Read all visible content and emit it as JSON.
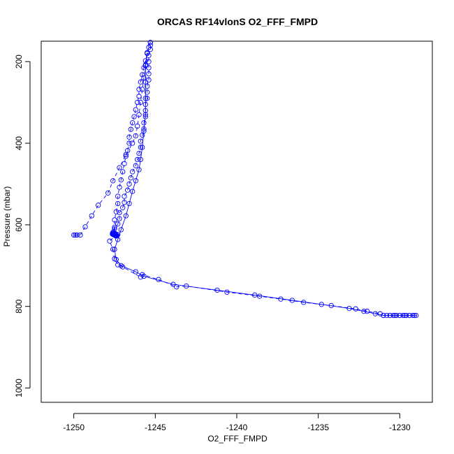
{
  "chart_data": {
    "type": "scatter",
    "title": "ORCAS RF14vlonS O2_FFF_FMPD",
    "xlabel": "O2_FFF_FMPD",
    "ylabel": "Pressure (mbar)",
    "xlim": [
      -1252,
      -1228
    ],
    "ylim": [
      1035,
      150
    ],
    "y_reversed": true,
    "x_ticks": [
      -1250,
      -1245,
      -1240,
      -1235,
      -1230
    ],
    "y_ticks": [
      200,
      400,
      600,
      800,
      1000
    ],
    "grid": false,
    "legend": "none",
    "series": [
      {
        "line_style": "dashed",
        "marker": "open-circle",
        "color": "#0000ff",
        "points": [
          {
            "x": -1229.0,
            "y": 822
          },
          {
            "x": -1229.2,
            "y": 822
          },
          {
            "x": -1229.4,
            "y": 822
          },
          {
            "x": -1229.6,
            "y": 822
          },
          {
            "x": -1229.8,
            "y": 822
          },
          {
            "x": -1230.0,
            "y": 822
          },
          {
            "x": -1230.2,
            "y": 822
          },
          {
            "x": -1230.4,
            "y": 822
          },
          {
            "x": -1230.6,
            "y": 822
          },
          {
            "x": -1230.8,
            "y": 822
          },
          {
            "x": -1231.0,
            "y": 822
          },
          {
            "x": -1231.2,
            "y": 818
          },
          {
            "x": -1232.0,
            "y": 812
          },
          {
            "x": -1232.7,
            "y": 806
          },
          {
            "x": -1234.2,
            "y": 798
          },
          {
            "x": -1235.9,
            "y": 790
          },
          {
            "x": -1237.3,
            "y": 782
          },
          {
            "x": -1238.6,
            "y": 775
          },
          {
            "x": -1240.6,
            "y": 765
          },
          {
            "x": -1243.1,
            "y": 750
          },
          {
            "x": -1243.7,
            "y": 752
          },
          {
            "x": -1244.8,
            "y": 734
          },
          {
            "x": -1245.8,
            "y": 722
          },
          {
            "x": -1245.9,
            "y": 728
          },
          {
            "x": -1247.0,
            "y": 703
          },
          {
            "x": -1247.3,
            "y": 698
          },
          {
            "x": -1247.5,
            "y": 683
          },
          {
            "x": -1247.6,
            "y": 660
          },
          {
            "x": -1247.8,
            "y": 640
          },
          {
            "x": -1247.4,
            "y": 625
          },
          {
            "x": -1247.5,
            "y": 610
          },
          {
            "x": -1247.3,
            "y": 598
          },
          {
            "x": -1247.2,
            "y": 585
          },
          {
            "x": -1247.2,
            "y": 570
          },
          {
            "x": -1247.0,
            "y": 558
          },
          {
            "x": -1246.9,
            "y": 545
          },
          {
            "x": -1246.9,
            "y": 530
          },
          {
            "x": -1246.7,
            "y": 515
          },
          {
            "x": -1246.6,
            "y": 500
          },
          {
            "x": -1246.5,
            "y": 485
          },
          {
            "x": -1246.4,
            "y": 470
          },
          {
            "x": -1246.2,
            "y": 455
          },
          {
            "x": -1246.1,
            "y": 440
          },
          {
            "x": -1246.0,
            "y": 425
          },
          {
            "x": -1245.9,
            "y": 410
          },
          {
            "x": -1245.9,
            "y": 395
          },
          {
            "x": -1245.8,
            "y": 380
          },
          {
            "x": -1245.7,
            "y": 365
          },
          {
            "x": -1245.7,
            "y": 350
          },
          {
            "x": -1245.6,
            "y": 335
          },
          {
            "x": -1245.6,
            "y": 320
          },
          {
            "x": -1245.6,
            "y": 305
          },
          {
            "x": -1245.5,
            "y": 290
          },
          {
            "x": -1245.5,
            "y": 275
          },
          {
            "x": -1245.5,
            "y": 260
          },
          {
            "x": -1245.4,
            "y": 245
          },
          {
            "x": -1245.4,
            "y": 230
          },
          {
            "x": -1245.4,
            "y": 215
          },
          {
            "x": -1245.4,
            "y": 200
          },
          {
            "x": -1245.4,
            "y": 185
          },
          {
            "x": -1245.3,
            "y": 170
          },
          {
            "x": -1245.3,
            "y": 160
          },
          {
            "x": -1245.3,
            "y": 153
          }
        ]
      },
      {
        "line_style": "dashed",
        "marker": "open-circle",
        "color": "#0000ff",
        "points": [
          {
            "x": -1245.3,
            "y": 153
          },
          {
            "x": -1245.4,
            "y": 165
          },
          {
            "x": -1245.5,
            "y": 180
          },
          {
            "x": -1245.6,
            "y": 198
          },
          {
            "x": -1245.7,
            "y": 215
          },
          {
            "x": -1245.8,
            "y": 232
          },
          {
            "x": -1245.9,
            "y": 250
          },
          {
            "x": -1246.0,
            "y": 268
          },
          {
            "x": -1246.0,
            "y": 285
          },
          {
            "x": -1246.1,
            "y": 300
          },
          {
            "x": -1246.2,
            "y": 318
          },
          {
            "x": -1246.3,
            "y": 335
          },
          {
            "x": -1246.4,
            "y": 350
          },
          {
            "x": -1246.5,
            "y": 366
          },
          {
            "x": -1246.6,
            "y": 385
          },
          {
            "x": -1246.6,
            "y": 400
          },
          {
            "x": -1246.7,
            "y": 418
          },
          {
            "x": -1246.8,
            "y": 432
          },
          {
            "x": -1246.9,
            "y": 450
          },
          {
            "x": -1247.0,
            "y": 470
          },
          {
            "x": -1247.1,
            "y": 490
          },
          {
            "x": -1247.2,
            "y": 508
          },
          {
            "x": -1247.3,
            "y": 530
          },
          {
            "x": -1247.3,
            "y": 548
          },
          {
            "x": -1247.4,
            "y": 568
          },
          {
            "x": -1247.5,
            "y": 588
          },
          {
            "x": -1247.5,
            "y": 606
          },
          {
            "x": -1247.6,
            "y": 618
          },
          {
            "x": -1247.5,
            "y": 624
          },
          {
            "x": -1247.4,
            "y": 624
          },
          {
            "x": -1247.3,
            "y": 624
          }
        ]
      },
      {
        "line_style": "dashed",
        "marker": "open-circle",
        "color": "#0000ff",
        "points": [
          {
            "x": -1250.0,
            "y": 625
          },
          {
            "x": -1249.9,
            "y": 625
          },
          {
            "x": -1249.8,
            "y": 625
          },
          {
            "x": -1249.6,
            "y": 625
          },
          {
            "x": -1249.3,
            "y": 605
          },
          {
            "x": -1248.9,
            "y": 578
          },
          {
            "x": -1248.5,
            "y": 552
          },
          {
            "x": -1247.9,
            "y": 522
          },
          {
            "x": -1247.6,
            "y": 492
          },
          {
            "x": -1247.2,
            "y": 460
          },
          {
            "x": -1246.8,
            "y": 428
          },
          {
            "x": -1246.4,
            "y": 400
          },
          {
            "x": -1246.2,
            "y": 382
          },
          {
            "x": -1246.1,
            "y": 358
          },
          {
            "x": -1246.0,
            "y": 330
          },
          {
            "x": -1245.9,
            "y": 300
          },
          {
            "x": -1245.8,
            "y": 268
          },
          {
            "x": -1245.7,
            "y": 240
          },
          {
            "x": -1245.6,
            "y": 208
          },
          {
            "x": -1245.5,
            "y": 178
          }
        ]
      },
      {
        "line_style": "solid",
        "marker": "open-circle",
        "color": "#0000ff",
        "points": [
          {
            "x": -1245.5,
            "y": 178
          },
          {
            "x": -1245.6,
            "y": 210
          },
          {
            "x": -1245.6,
            "y": 250
          },
          {
            "x": -1245.6,
            "y": 290
          },
          {
            "x": -1245.6,
            "y": 330
          },
          {
            "x": -1245.7,
            "y": 370
          },
          {
            "x": -1245.8,
            "y": 410
          },
          {
            "x": -1245.9,
            "y": 440
          },
          {
            "x": -1246.0,
            "y": 465
          },
          {
            "x": -1246.2,
            "y": 492
          },
          {
            "x": -1246.4,
            "y": 518
          },
          {
            "x": -1246.6,
            "y": 548
          },
          {
            "x": -1246.8,
            "y": 578
          },
          {
            "x": -1247.1,
            "y": 612
          },
          {
            "x": -1247.3,
            "y": 636
          },
          {
            "x": -1247.5,
            "y": 660
          },
          {
            "x": -1247.4,
            "y": 685
          },
          {
            "x": -1247.1,
            "y": 700
          },
          {
            "x": -1246.2,
            "y": 715
          },
          {
            "x": -1245.7,
            "y": 726
          },
          {
            "x": -1243.9,
            "y": 746
          },
          {
            "x": -1241.2,
            "y": 760
          },
          {
            "x": -1238.9,
            "y": 772
          },
          {
            "x": -1236.6,
            "y": 785
          },
          {
            "x": -1234.8,
            "y": 795
          },
          {
            "x": -1233.1,
            "y": 805
          },
          {
            "x": -1232.2,
            "y": 812
          },
          {
            "x": -1231.5,
            "y": 818
          },
          {
            "x": -1231.0,
            "y": 822
          },
          {
            "x": -1230.6,
            "y": 822
          },
          {
            "x": -1230.3,
            "y": 822
          },
          {
            "x": -1230.0,
            "y": 822
          },
          {
            "x": -1229.7,
            "y": 822
          },
          {
            "x": -1229.4,
            "y": 822
          },
          {
            "x": -1229.1,
            "y": 822
          }
        ]
      },
      {
        "line_style": "none",
        "marker": "filled-circle",
        "color": "#0000ff",
        "points": [
          {
            "x": -1247.6,
            "y": 622
          },
          {
            "x": -1247.5,
            "y": 624
          },
          {
            "x": -1247.4,
            "y": 626
          },
          {
            "x": -1247.5,
            "y": 622
          }
        ]
      }
    ]
  }
}
